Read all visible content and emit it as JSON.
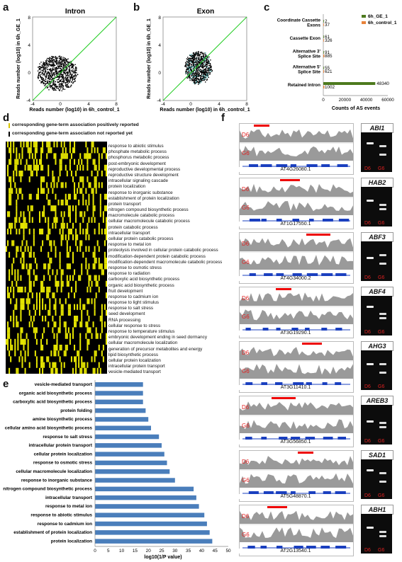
{
  "panels": {
    "a": {
      "letter": "a",
      "title": "Intron",
      "xlabel": "Reads number (log10) in 6h_control_1",
      "ylabel": "Reads number (log10) in 6h_GE_1",
      "xticks": [
        "-4",
        "0",
        "4",
        "8"
      ],
      "yticks": [
        "8",
        "4",
        "0",
        "-4"
      ]
    },
    "b": {
      "letter": "b",
      "title": "Exon",
      "xlabel": "Reads number (log10) in 6h_control_1",
      "ylabel": "Reads number (log10) in 6h_GE_1",
      "xticks": [
        "-4",
        "0",
        "4",
        "8"
      ],
      "yticks": [
        "8",
        "4",
        "0",
        "-4"
      ]
    },
    "c": {
      "letter": "c",
      "xlabel": "Counts of AS events",
      "legend": [
        "6h_GE_1",
        "6h_control_1"
      ],
      "xticks": [
        "0",
        "20000",
        "40000",
        "60000"
      ]
    },
    "d": {
      "letter": "d",
      "legend": [
        "corresponding gene-term association positively reported",
        "corresponding gene-term association not reported yet"
      ]
    },
    "e": {
      "letter": "e",
      "xlabel": "log10(1/P value)",
      "xticks": [
        "0",
        "5",
        "10",
        "15",
        "20",
        "25",
        "30",
        "35",
        "40",
        "45",
        "50"
      ]
    },
    "f": {
      "letter": "f",
      "lane_d": "D6",
      "lane_g": "G6"
    }
  },
  "chart_data": [
    {
      "type": "scatter",
      "title": "Intron",
      "xlabel": "Reads number (log10) in 6h_control_1",
      "ylabel": "Reads number (log10) in 6h_GE_1",
      "xlim": [
        -4,
        8
      ],
      "ylim": [
        -4,
        8
      ],
      "colors": {
        "points": "#000000",
        "diagonal": "#22cc22"
      }
    },
    {
      "type": "scatter",
      "title": "Exon",
      "xlabel": "Reads number (log10) in 6h_control_1",
      "ylabel": "Reads number (log10) in 6h_GE_1",
      "xlim": [
        -4,
        8
      ],
      "ylim": [
        -4,
        8
      ],
      "colors": {
        "points": "#000000",
        "diagonal": "#22cc22"
      }
    },
    {
      "type": "bar",
      "orientation": "horizontal",
      "xlabel": "Counts of AS events",
      "xlim": [
        0,
        60000
      ],
      "categories": [
        "Coordinate Cassette Exons",
        "Cassette Exon",
        "Alternative 3' Splice Site",
        "Alternative 5' Splice Site",
        "Retained Intron"
      ],
      "series": [
        {
          "name": "6h_GE_1",
          "color": "#4d7a1e",
          "values": [
            2,
            61,
            91,
            55,
            48340
          ],
          "labels": [
            "2",
            "61",
            "91",
            "55",
            "48340"
          ]
        },
        {
          "name": "6h_control_1",
          "color": "#e8823a",
          "values": [
            37,
            326,
            885,
            621,
            1002
          ],
          "labels": [
            "37",
            "326",
            "885",
            "621",
            "1002"
          ]
        }
      ],
      "legend_position": "top-right"
    },
    {
      "type": "heatmap",
      "rows": [
        "response to abiotic stimulus",
        "phosphate metabolic process",
        "phosphorus metabolic process",
        "post-embryonic development",
        "reproductive developmental process",
        "reproductive structure development",
        "intracellular signaling cascade",
        "protein localization",
        "response to inorganic substance",
        "establishment of protein localization",
        "protein transport",
        "nitrogen compound biosynthetic process",
        "macromolecule catabolic process",
        "cellular macromolecule catabolic process",
        "protein catabolic process",
        "intracellular transport",
        "cellular protein catabolic process",
        "response to metal ion",
        "proteolysis involved in cellular protein catabolic process",
        "modification-dependent protein catabolic process",
        "modification-dependent macromolecule catabolic process",
        "response to osmotic stress",
        "response to radiation",
        "carboxylic acid biosynthetic process",
        "organic acid biosynthetic process",
        "fruit development",
        "response to cadmium ion",
        "response to light stimulus",
        "response to salt stress",
        "seed development",
        "RNA processing",
        "cellular response to stress",
        "response to temperature stimulus",
        "embryonic development ending in seed dormancy",
        "cellular macromolecule localization",
        "generation of precursor metabolites and energy",
        "lipid biosynthetic process",
        "cellular protein localization",
        "intracellular protein transport",
        "vesicle-mediated transport"
      ],
      "colors": {
        "reported": "#e6e600",
        "not_reported": "#000000"
      }
    },
    {
      "type": "bar",
      "orientation": "horizontal",
      "xlabel": "log10(1/P value)",
      "xlim": [
        0,
        50
      ],
      "color": "#4a7ebb",
      "categories": [
        "vesicle-mediated transport",
        "organic acid biosynthetic process",
        "carboxylic acid biosynthetic process",
        "protein folding",
        "amine biosynthetic process",
        "cellular amino acid biosynthetic process",
        "response to salt stress",
        "intracellular protein transport",
        "cellular protein localization",
        "response to osmotic stress",
        "cellular macromolecule localization",
        "response to inorganic substance",
        "nitrogen compound biosynthetic process",
        "intracellular transport",
        "response to metal ion",
        "response to abiotic stimulus",
        "response to cadmium ion",
        "establishment of protein localization",
        "protein localization"
      ],
      "values": [
        18,
        18,
        18,
        19,
        20,
        21,
        24,
        25,
        26,
        27,
        28,
        30,
        37,
        38,
        39,
        41,
        42,
        43,
        44
      ]
    }
  ],
  "genes": [
    {
      "name": "ABI1",
      "locus": "AT4G26080.1"
    },
    {
      "name": "HAB2",
      "locus": "AT1G17550.1"
    },
    {
      "name": "ABF3",
      "locus": "AT4G34000.2"
    },
    {
      "name": "ABF4",
      "locus": "AT3G19290.1"
    },
    {
      "name": "AHG3",
      "locus": "AT3G11410.1"
    },
    {
      "name": "AREB3",
      "locus": "AT3G56850.1"
    },
    {
      "name": "SAD1",
      "locus": "AT5G48870.1"
    },
    {
      "name": "ABH1",
      "locus": "AT2G13540.1"
    }
  ]
}
